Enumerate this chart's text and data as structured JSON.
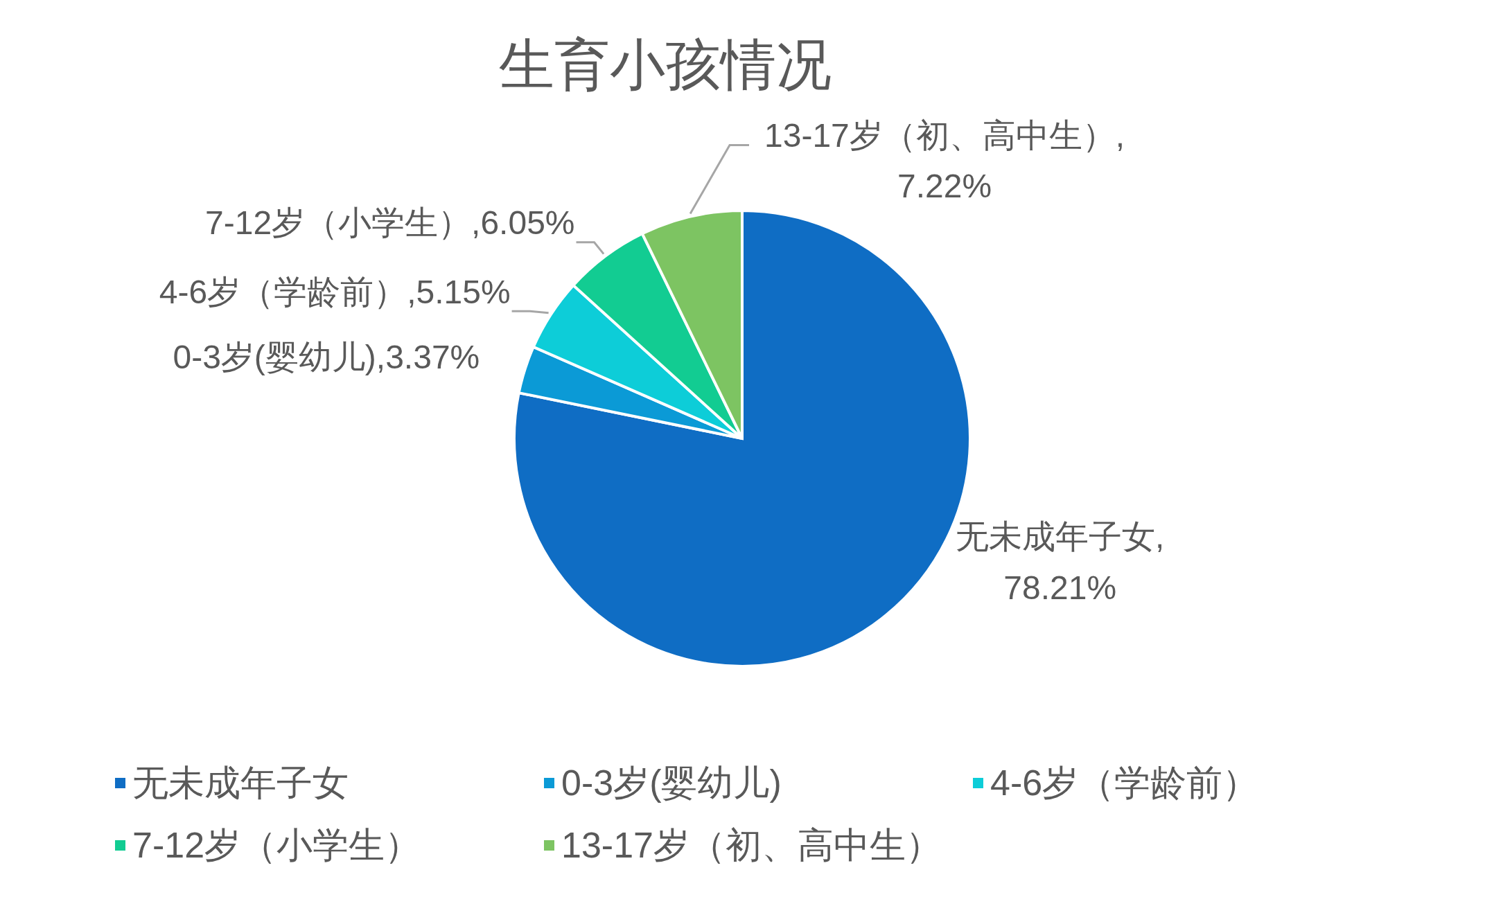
{
  "chart_data": {
    "type": "pie",
    "title": "生育小孩情况",
    "categories": [
      "无未成年子女",
      "0-3岁(婴幼儿)",
      "4-6岁（学龄前）",
      "7-12岁（小学生）",
      "13-17岁（初、高中生）"
    ],
    "values": [
      78.21,
      3.37,
      5.15,
      6.05,
      7.22
    ],
    "colors": [
      "#0f6dc4",
      "#0b9ad6",
      "#0dcdd8",
      "#12cc92",
      "#7dc462"
    ],
    "value_labels": [
      "无未成年子女,78.21%",
      "0-3岁(婴幼儿),3.37%",
      "4-6岁（学龄前）,5.15%",
      "7-12岁（小学生）,6.05%",
      "13-17岁（初、高中生）,7.22%"
    ],
    "legend": "bottom"
  }
}
